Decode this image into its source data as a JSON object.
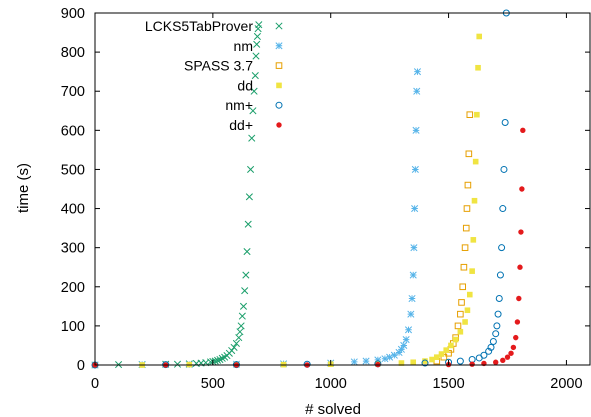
{
  "chart_data": {
    "type": "scatter",
    "title": "",
    "xlabel": "# solved",
    "ylabel": "time (s)",
    "xlim": [
      0,
      2100
    ],
    "ylim": [
      0,
      900
    ],
    "xticks": [
      0,
      500,
      1000,
      1500,
      2000
    ],
    "yticks": [
      0,
      100,
      200,
      300,
      400,
      500,
      600,
      700,
      800,
      900
    ],
    "grid": false,
    "legend_position": "top-left",
    "series": [
      {
        "name": "LCKS5TabProver",
        "marker": "x",
        "color": "#1a9e6a",
        "x": [
          0,
          100,
          200,
          300,
          350,
          400,
          430,
          450,
          470,
          490,
          500,
          510,
          520,
          530,
          540,
          550,
          560,
          570,
          580,
          590,
          600,
          610,
          615,
          620,
          625,
          630,
          635,
          640,
          645,
          650,
          655,
          660,
          665,
          670,
          675,
          680,
          683,
          686,
          689,
          692,
          695
        ],
        "y": [
          0,
          1,
          1,
          2,
          2,
          3,
          4,
          5,
          6,
          8,
          9,
          10,
          12,
          14,
          17,
          20,
          24,
          30,
          37,
          45,
          55,
          70,
          85,
          100,
          125,
          150,
          190,
          230,
          290,
          360,
          430,
          500,
          580,
          650,
          700,
          740,
          790,
          820,
          840,
          860,
          870
        ]
      },
      {
        "name": "nm",
        "marker": "asterisk",
        "color": "#56b4e9",
        "x": [
          0,
          200,
          400,
          600,
          800,
          1000,
          1100,
          1150,
          1200,
          1230,
          1250,
          1270,
          1290,
          1300,
          1310,
          1320,
          1330,
          1340,
          1345,
          1350,
          1353,
          1356,
          1359,
          1362,
          1365,
          1368
        ],
        "y": [
          0,
          1,
          1,
          2,
          3,
          5,
          8,
          10,
          13,
          16,
          20,
          25,
          32,
          40,
          50,
          65,
          90,
          130,
          170,
          230,
          300,
          400,
          500,
          600,
          700,
          750
        ]
      },
      {
        "name": "SPASS 3.7",
        "marker": "square-open",
        "color": "#e69f00",
        "x": [
          1450,
          1480,
          1500,
          1510,
          1520,
          1530,
          1540,
          1550,
          1555,
          1560,
          1565,
          1570,
          1575,
          1578,
          1582,
          1586,
          1590
        ],
        "y": [
          10,
          20,
          30,
          40,
          55,
          70,
          100,
          130,
          160,
          200,
          250,
          300,
          350,
          400,
          460,
          540,
          640
        ]
      },
      {
        "name": "dd",
        "marker": "square-filled",
        "color": "#f0e442",
        "x": [
          0,
          200,
          400,
          600,
          800,
          1000,
          1200,
          1300,
          1350,
          1400,
          1430,
          1450,
          1470,
          1490,
          1510,
          1530,
          1550,
          1570,
          1580,
          1590,
          1600,
          1605,
          1610,
          1615,
          1620,
          1625,
          1630
        ],
        "y": [
          0,
          0,
          1,
          1,
          1,
          2,
          3,
          5,
          7,
          10,
          14,
          20,
          28,
          38,
          50,
          65,
          85,
          110,
          140,
          180,
          240,
          320,
          420,
          520,
          640,
          760,
          840
        ]
      },
      {
        "name": "nm+",
        "marker": "circle-open",
        "color": "#0072b2",
        "x": [
          0,
          300,
          600,
          900,
          1200,
          1400,
          1500,
          1550,
          1600,
          1630,
          1650,
          1670,
          1680,
          1690,
          1700,
          1705,
          1710,
          1715,
          1720,
          1725,
          1730,
          1735,
          1740,
          1745
        ],
        "y": [
          0,
          1,
          1,
          2,
          3,
          5,
          7,
          10,
          14,
          18,
          25,
          35,
          45,
          60,
          80,
          100,
          130,
          170,
          230,
          300,
          400,
          500,
          620,
          900
        ]
      },
      {
        "name": "dd+",
        "marker": "dot",
        "color": "#e41a1c",
        "x": [
          0,
          300,
          600,
          900,
          1200,
          1500,
          1600,
          1650,
          1700,
          1730,
          1750,
          1765,
          1775,
          1785,
          1792,
          1798,
          1803,
          1807,
          1811,
          1815
        ],
        "y": [
          0,
          0,
          0,
          0,
          1,
          1,
          2,
          4,
          7,
          12,
          20,
          30,
          45,
          70,
          110,
          170,
          250,
          340,
          450,
          600
        ]
      }
    ]
  }
}
